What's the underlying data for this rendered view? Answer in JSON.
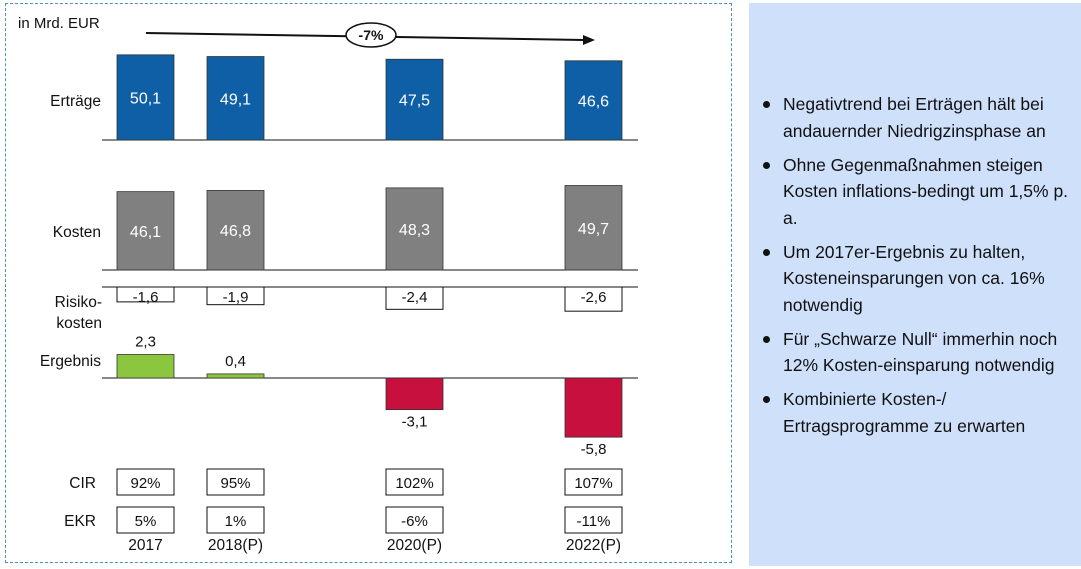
{
  "chart_data": {
    "type": "bar",
    "unit_label": "in Mrd. EUR",
    "trend_label": "-7%",
    "categories": [
      "2017",
      "2018(P)",
      "2020(P)",
      "2022(P)"
    ],
    "rows": [
      {
        "name": "Erträge",
        "kind": "bar",
        "color": "#0e5fa5",
        "values": [
          50.1,
          49.1,
          47.5,
          46.6
        ],
        "labels": [
          "50,1",
          "49,1",
          "47,5",
          "46,6"
        ]
      },
      {
        "name": "Kosten",
        "kind": "bar",
        "color": "#808080",
        "values": [
          46.1,
          46.8,
          48.3,
          49.7
        ],
        "labels": [
          "46,1",
          "46,8",
          "48,3",
          "49,7"
        ]
      },
      {
        "name": "Risiko-kosten",
        "kind": "box",
        "values": [
          -1.6,
          -1.9,
          -2.4,
          -2.6
        ],
        "labels": [
          "-1,6",
          "-1,9",
          "-2,4",
          "-2,6"
        ]
      },
      {
        "name": "Ergebnis",
        "kind": "signed-bar",
        "color_positive": "#8cc63f",
        "color_negative": "#c8103e",
        "values": [
          2.3,
          0.4,
          -3.1,
          -5.8
        ],
        "labels": [
          "2,3",
          "0,4",
          "-3,1",
          "-5,8"
        ]
      }
    ],
    "kpis": [
      {
        "name": "CIR",
        "labels": [
          "92%",
          "95%",
          "102%",
          "107%"
        ]
      },
      {
        "name": "EKR",
        "labels": [
          "5%",
          "1%",
          "-6%",
          "-11%"
        ]
      }
    ]
  },
  "bullets": [
    "Negativtrend bei Erträgen hält bei andauernder Niedrigzinsphase an",
    "Ohne Gegenmaßnahmen steigen Kosten inflations-bedingt um 1,5% p. a.",
    "Um 2017er-Ergebnis zu halten, Kosteneinsparungen von ca. 16% notwendig",
    "Für „Schwarze Null“ immerhin noch 12% Kosten-einsparung notwendig",
    "Kombinierte Kosten-/ Ertragsprogramme zu erwarten"
  ]
}
